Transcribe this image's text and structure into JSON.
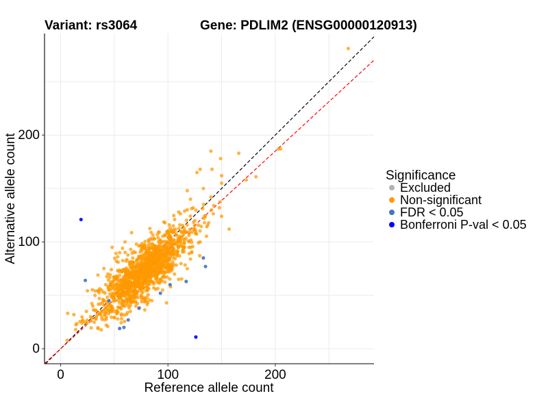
{
  "chart_data": {
    "type": "scatter",
    "title_left": "Variant: rs3064",
    "title_right": "Gene: PDLIM2 (ENSG00000120913)",
    "xlabel": "Reference allele count",
    "ylabel": "Alternative allele count",
    "xlim": [
      -15,
      292
    ],
    "ylim": [
      -14,
      295
    ],
    "x_ticks": [
      0,
      100,
      200
    ],
    "y_ticks": [
      0,
      100,
      200
    ],
    "grid": true,
    "legend": {
      "title": "Significance",
      "position": "right",
      "entries": [
        {
          "label": "Excluded",
          "color": "#b3b3b3"
        },
        {
          "label": "Non-significant",
          "color": "#ff9900"
        },
        {
          "label": "FDR < 0.05",
          "color": "#4477bb"
        },
        {
          "label": "Bonferroni P-val < 0.05",
          "color": "#0000ff"
        }
      ]
    },
    "reference_lines": [
      {
        "kind": "identity",
        "slope": 1,
        "intercept": 0,
        "color": "#000000",
        "style": "dashed"
      },
      {
        "kind": "fit",
        "slope": 0.925,
        "intercept": 0,
        "color": "#ff0000",
        "style": "dashed"
      }
    ],
    "series": [
      {
        "name": "Non-significant",
        "color": "#ff9900",
        "points": [
          [
            268,
            281
          ],
          [
            203,
            187
          ],
          [
            205,
            187
          ],
          [
            140,
            185
          ],
          [
            166,
            183
          ],
          [
            149,
            178
          ],
          [
            182,
            161
          ],
          [
            173,
            158
          ],
          [
            150,
            162
          ],
          [
            150,
            155
          ],
          [
            133,
            150
          ],
          [
            127,
            165
          ],
          [
            141,
            168
          ],
          [
            130,
            168
          ],
          [
            157,
            112
          ],
          [
            148,
            132
          ],
          [
            150,
            124
          ],
          [
            118,
            148
          ],
          [
            121,
            140
          ],
          [
            140,
            142
          ],
          [
            118,
            130
          ],
          [
            134,
            118
          ],
          [
            124,
            112
          ],
          [
            125,
            120
          ],
          [
            110,
            128
          ],
          [
            105,
            115
          ],
          [
            130,
            100
          ],
          [
            115,
            95
          ],
          [
            100,
            108
          ],
          [
            112,
            110
          ],
          [
            95,
            100
          ],
          [
            30,
            40
          ],
          [
            24,
            35
          ],
          [
            36,
            47
          ],
          [
            40,
            45
          ],
          [
            28,
            30
          ],
          [
            20,
            24
          ],
          [
            32,
            50
          ],
          [
            44,
            70
          ],
          [
            48,
            95
          ],
          [
            55,
            90
          ],
          [
            60,
            100
          ],
          [
            52,
            82
          ],
          [
            58,
            45
          ],
          [
            70,
            40
          ],
          [
            65,
            35
          ],
          [
            85,
            45
          ],
          [
            95,
            55
          ],
          [
            110,
            65
          ],
          [
            118,
            75
          ],
          [
            105,
            85
          ],
          [
            122,
            90
          ],
          [
            45,
            55
          ],
          [
            42,
            60
          ],
          [
            38,
            55
          ],
          [
            50,
            35
          ],
          [
            6,
            8
          ],
          [
            14,
            18
          ]
        ],
        "cluster": {
          "center": [
            78,
            72
          ],
          "spread": [
            22,
            21
          ],
          "correlation": 0.8,
          "count": 1250
        }
      },
      {
        "name": "FDR < 0.05",
        "color": "#4477bb",
        "points": [
          [
            23,
            64
          ],
          [
            55,
            19
          ],
          [
            59,
            20
          ],
          [
            63,
            27
          ],
          [
            73,
            38
          ],
          [
            102,
            60
          ],
          [
            117,
            63
          ],
          [
            133,
            85
          ],
          [
            135,
            77
          ],
          [
            45,
            45
          ],
          [
            93,
            52
          ]
        ]
      },
      {
        "name": "Bonferroni P-val < 0.05",
        "color": "#0000ff",
        "points": [
          [
            19,
            121
          ],
          [
            126,
            11
          ]
        ]
      }
    ]
  }
}
